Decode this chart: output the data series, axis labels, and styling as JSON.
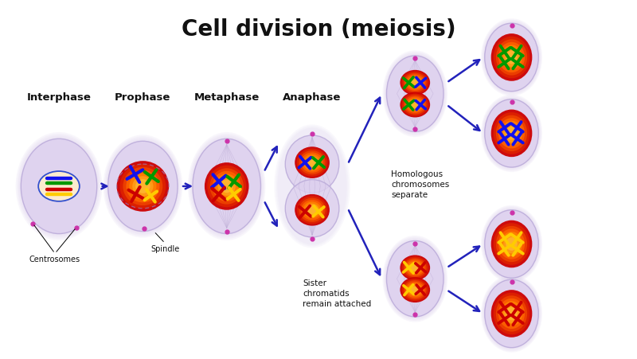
{
  "title": "Cell division (meiosis)",
  "title_fontsize": 20,
  "title_fontweight": "bold",
  "background_color": "#ffffff",
  "phase_labels": [
    "Interphase",
    "Prophase",
    "Metaphase",
    "Anaphase"
  ],
  "phase_label_fontsize": 9.5,
  "phase_label_fontweight": "bold",
  "annotation_fontsize": 7.5,
  "cell_body_color": "#ddd0ee",
  "cell_edge_color": "#b8a8d8",
  "nucleus_orange": "#ff6600",
  "nucleus_red": "#dd1100",
  "spindle_color": "#c0b0d8",
  "arrow_color": "#2222bb",
  "chr_blue": "#1111ee",
  "chr_green": "#009900",
  "chr_red": "#cc0000",
  "chr_yellow": "#ffcc00",
  "centrosome_color": "#cc33aa",
  "label_centrosomes": "Centrosomes",
  "label_spindle": "Spindle",
  "label_homologous": "Homologous\nchromosomes\nseparate",
  "label_sister": "Sister\nchromatids\nremain attached"
}
